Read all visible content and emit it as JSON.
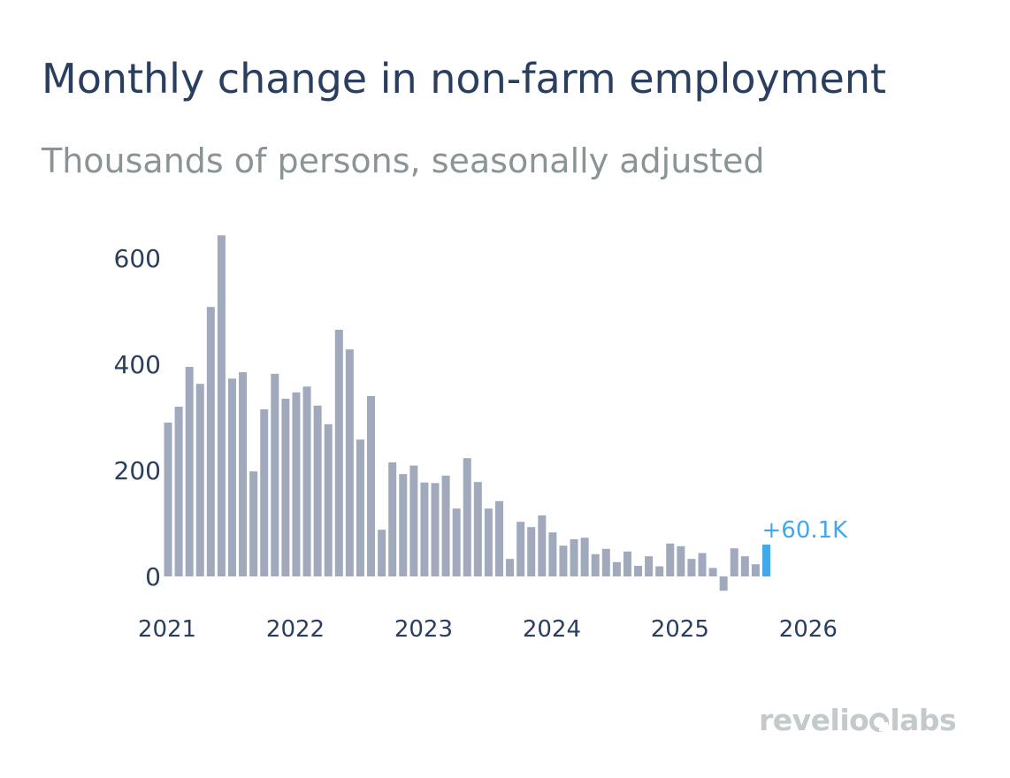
{
  "title": "Monthly change in non-farm employment",
  "subtitle": "Thousands of persons, seasonally adjusted",
  "logo": "revelio labs",
  "colors": {
    "bar": "#a1a9bd",
    "highlight": "#41a8eb",
    "axis_text": "#2a3f5f",
    "subtitle": "#8a9396",
    "logo": "#c4c9cc"
  },
  "chart_data": {
    "type": "bar",
    "title": "Monthly change in non-farm employment",
    "subtitle": "Thousands of persons, seasonally adjusted",
    "x_start": "2021-01",
    "x_ticks": [
      "2021",
      "2022",
      "2023",
      "2024",
      "2025",
      "2026"
    ],
    "y_ticks": [
      "600",
      "400",
      "200",
      "0"
    ],
    "ylim": [
      -30,
      650
    ],
    "grid": false,
    "series": [
      {
        "values": [
          290,
          320,
          395,
          363,
          508,
          643,
          373,
          385,
          198,
          315,
          382,
          335,
          347,
          358,
          322,
          287,
          465,
          428,
          258,
          340,
          88,
          215,
          193,
          209,
          177,
          176,
          190,
          128,
          223,
          178,
          128,
          142,
          33,
          103,
          93,
          115,
          83,
          58,
          70,
          73,
          42,
          52,
          27,
          47,
          20,
          38,
          19,
          62,
          57,
          33,
          44,
          16,
          -27,
          53,
          38,
          23,
          60.1
        ]
      }
    ],
    "annotation": {
      "text": "+60.1K",
      "index": 56
    }
  }
}
